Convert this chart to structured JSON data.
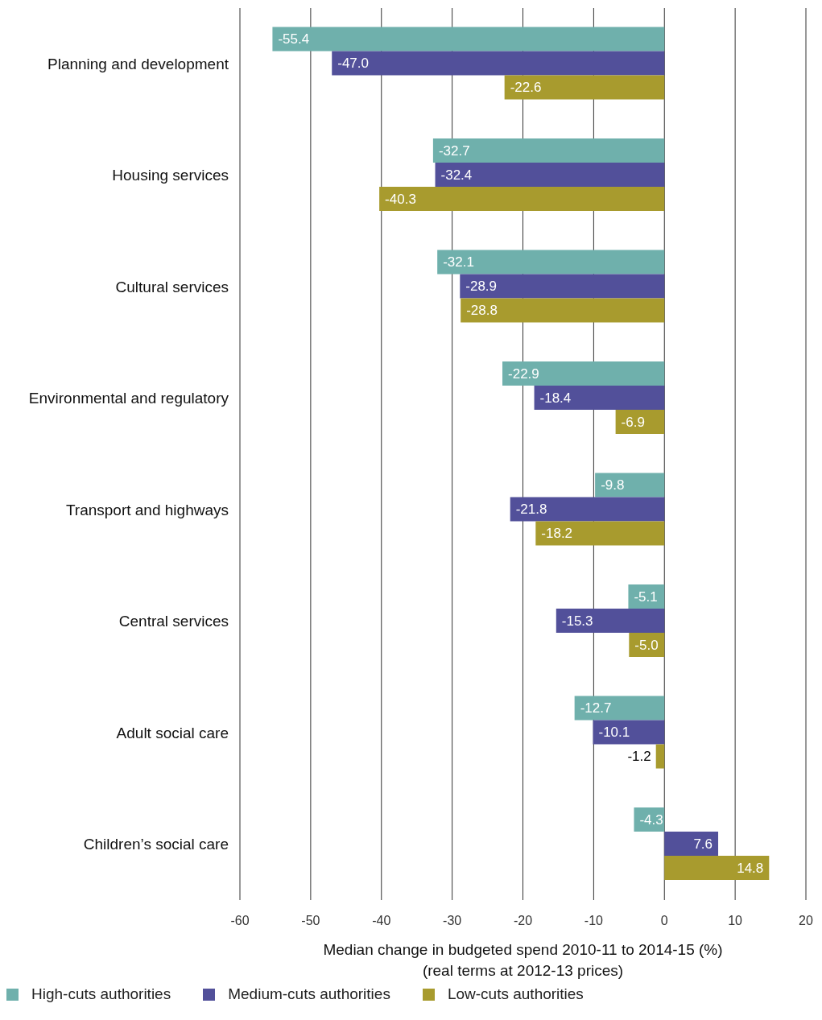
{
  "chart_data": {
    "type": "bar",
    "orientation": "horizontal",
    "xlabel": "Median change in budgeted spend 2010-11 to 2014-15 (%)\n(real terms at 2012-13 prices)",
    "categories": [
      "Planning and development",
      "Housing services",
      "Cultural services",
      "Environmental and regulatory",
      "Transport and highways",
      "Central services",
      "Adult social care",
      "Children’s social care"
    ],
    "series": [
      {
        "name": "High-cuts authorities",
        "color": "#6fb0ac",
        "values": [
          -55.4,
          -32.7,
          -32.1,
          -22.9,
          -9.8,
          -5.1,
          -12.7,
          -4.3
        ],
        "value_labels": [
          "-55.4",
          "-32.7",
          "-32.1",
          "-22.9",
          "-9.8",
          "-5.1",
          "-12.7",
          "-4.3"
        ]
      },
      {
        "name": "Medium-cuts authorities",
        "color": "#52509a",
        "values": [
          -47.0,
          -32.4,
          -28.9,
          -18.4,
          -21.8,
          -15.3,
          -10.1,
          7.6
        ],
        "value_labels": [
          "-47.0",
          "-32.4",
          "-28.9",
          "-18.4",
          "-21.8",
          "-15.3",
          "-10.1",
          "7.6"
        ]
      },
      {
        "name": "Low-cuts authorities",
        "color": "#a89b2e",
        "values": [
          -22.6,
          -40.3,
          -28.8,
          -6.9,
          -18.2,
          -5.0,
          -1.2,
          14.8
        ],
        "value_labels": [
          "-22.6",
          "-40.3",
          "-28.8",
          "-6.9",
          "-18.2",
          "-5.0",
          "-1.2",
          "14.8"
        ]
      }
    ],
    "xlim": [
      -60,
      20
    ],
    "xticks": [
      -60,
      -50,
      -40,
      -30,
      -20,
      -10,
      0,
      10,
      20
    ],
    "grid": "x",
    "legend": "bottom left"
  }
}
